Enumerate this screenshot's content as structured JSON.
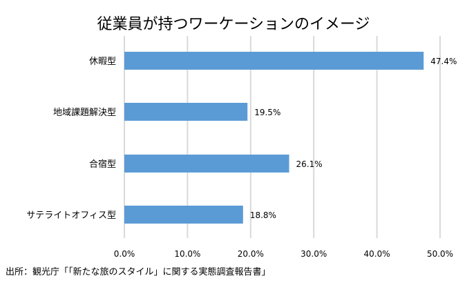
{
  "chart_data": {
    "type": "bar",
    "orientation": "horizontal",
    "title": "従業員が持つワーケーションのイメージ",
    "categories": [
      "休暇型",
      "地域課題解決型",
      "合宿型",
      "サテライトオフィス型"
    ],
    "values": [
      47.4,
      19.5,
      26.1,
      18.8
    ],
    "data_labels": [
      "47.4%",
      "19.5%",
      "26.1%",
      "18.8%"
    ],
    "xlim": [
      0,
      50
    ],
    "x_ticks": [
      0,
      10,
      20,
      30,
      40,
      50
    ],
    "x_tick_labels": [
      "0.0%",
      "10.0%",
      "20.0%",
      "30.0%",
      "40.0%",
      "50.0%"
    ],
    "grid": true,
    "legend": "none",
    "xlabel": "",
    "ylabel": "",
    "source": "出所：観光庁「「新たな旅のスタイル」に関する実態調査報告書」",
    "colors": {
      "bar": "#5b9bd5",
      "grid": "#d9d9d9",
      "text": "#000000"
    }
  }
}
